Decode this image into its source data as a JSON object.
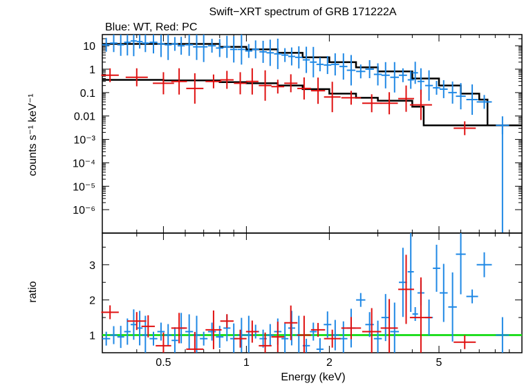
{
  "chart_data": [
    {
      "type": "scatter",
      "title": "Swift−XRT spectrum of GRB 171222A",
      "subtitle": "Blue: WT, Red: PC",
      "xlabel": "",
      "ylabel": "counts s⁻¹ keV⁻¹",
      "xscale": "log",
      "yscale": "log",
      "xlim": [
        0.3,
        10
      ],
      "ylim": [
        1e-07,
        30
      ],
      "yticks": [
        "10",
        "1",
        "0.1",
        "0.01",
        "10⁻³",
        "10⁻⁴",
        "10⁻⁵",
        "10⁻⁶"
      ],
      "series": [
        {
          "color": "#1f88e5",
          "style": "crosses",
          "points": [
            [
              0.31,
              11
            ],
            [
              0.33,
              13
            ],
            [
              0.35,
              11
            ],
            [
              0.37,
              14
            ],
            [
              0.39,
              16
            ],
            [
              0.41,
              15
            ],
            [
              0.43,
              13
            ],
            [
              0.46,
              14
            ],
            [
              0.49,
              12
            ],
            [
              0.52,
              11
            ],
            [
              0.55,
              12
            ],
            [
              0.58,
              10
            ],
            [
              0.62,
              11
            ],
            [
              0.66,
              9
            ],
            [
              0.7,
              9
            ],
            [
              0.75,
              10
            ],
            [
              0.8,
              8
            ],
            [
              0.85,
              9
            ],
            [
              0.9,
              7
            ],
            [
              0.96,
              7
            ],
            [
              1.02,
              6
            ],
            [
              1.08,
              7
            ],
            [
              1.15,
              5.5
            ],
            [
              1.22,
              5
            ],
            [
              1.3,
              4.5
            ],
            [
              1.38,
              4
            ],
            [
              1.46,
              3.5
            ],
            [
              1.55,
              3.2
            ],
            [
              1.65,
              2.5
            ],
            [
              1.75,
              2.0
            ],
            [
              1.85,
              1.6
            ],
            [
              1.97,
              1.5
            ],
            [
              2.1,
              1.6
            ],
            [
              2.25,
              1.3
            ],
            [
              2.4,
              0.9
            ],
            [
              2.6,
              0.8
            ],
            [
              2.8,
              1.0
            ],
            [
              3.0,
              0.6
            ],
            [
              3.2,
              0.55
            ],
            [
              3.45,
              0.45
            ],
            [
              3.7,
              0.55
            ],
            [
              3.95,
              0.35
            ],
            [
              4.1,
              0.7
            ],
            [
              4.3,
              0.3
            ],
            [
              4.6,
              0.2
            ],
            [
              4.9,
              0.16
            ],
            [
              5.2,
              0.14
            ],
            [
              5.6,
              0.1
            ],
            [
              6.0,
              0.07
            ],
            [
              6.6,
              0.05
            ],
            [
              7.3,
              0.04
            ],
            [
              8.5,
              0.004
            ]
          ]
        },
        {
          "color": "#e01010",
          "style": "crosses",
          "points": [
            [
              0.32,
              0.55
            ],
            [
              0.4,
              0.45
            ],
            [
              0.5,
              0.25
            ],
            [
              0.57,
              0.3
            ],
            [
              0.65,
              0.15
            ],
            [
              0.76,
              0.3
            ],
            [
              0.85,
              0.35
            ],
            [
              0.95,
              0.25
            ],
            [
              1.05,
              0.3
            ],
            [
              1.17,
              0.2
            ],
            [
              1.3,
              0.18
            ],
            [
              1.45,
              0.25
            ],
            [
              1.62,
              0.15
            ],
            [
              1.82,
              0.12
            ],
            [
              2.05,
              0.065
            ],
            [
              2.4,
              0.06
            ],
            [
              2.85,
              0.035
            ],
            [
              3.3,
              0.035
            ],
            [
              3.8,
              0.055
            ],
            [
              4.3,
              0.03
            ],
            [
              6.2,
              0.003
            ]
          ]
        },
        {
          "color": "#000000",
          "style": "model-blue",
          "points": [
            [
              0.3,
              12
            ],
            [
              0.5,
              12
            ],
            [
              0.8,
              9
            ],
            [
              1.0,
              7
            ],
            [
              1.3,
              5
            ],
            [
              1.6,
              3.2
            ],
            [
              2.0,
              2.0
            ],
            [
              2.5,
              1.2
            ],
            [
              3.0,
              0.8
            ],
            [
              4.0,
              0.4
            ],
            [
              5.0,
              0.2
            ],
            [
              6.0,
              0.09
            ],
            [
              7.0,
              0.05
            ],
            [
              7.5,
              0.004
            ],
            [
              10,
              0.004
            ]
          ]
        },
        {
          "color": "#000000",
          "style": "model-red",
          "points": [
            [
              0.3,
              0.35
            ],
            [
              0.5,
              0.33
            ],
            [
              0.8,
              0.28
            ],
            [
              1.0,
              0.25
            ],
            [
              1.3,
              0.2
            ],
            [
              1.6,
              0.14
            ],
            [
              2.0,
              0.09
            ],
            [
              2.5,
              0.06
            ],
            [
              3.0,
              0.045
            ],
            [
              4.0,
              0.025
            ],
            [
              4.4,
              0.022
            ],
            [
              4.4,
              0.004
            ],
            [
              10,
              0.004
            ]
          ]
        }
      ]
    },
    {
      "type": "scatter",
      "xlabel": "Energy (keV)",
      "ylabel": "ratio",
      "xscale": "log",
      "xlim": [
        0.3,
        10
      ],
      "ylim": [
        0.5,
        3.9
      ],
      "xticks": [
        [
          "0.5",
          0.5
        ],
        [
          "1",
          1
        ],
        [
          "2",
          2
        ],
        [
          "5",
          5
        ]
      ],
      "yticks": [
        "3",
        "2",
        "1"
      ],
      "reference_line": {
        "y": 1,
        "color": "#22dd22"
      },
      "series": [
        {
          "color": "#1f88e5",
          "style": "crosses",
          "points": [
            [
              0.31,
              0.9
            ],
            [
              0.33,
              1.0
            ],
            [
              0.35,
              0.95
            ],
            [
              0.37,
              1.1
            ],
            [
              0.39,
              1.3
            ],
            [
              0.41,
              1.2
            ],
            [
              0.43,
              1.0
            ],
            [
              0.46,
              0.9
            ],
            [
              0.49,
              1.1
            ],
            [
              0.52,
              1.0
            ],
            [
              0.55,
              0.85
            ],
            [
              0.58,
              1.2
            ],
            [
              0.62,
              1.1
            ],
            [
              0.66,
              1.0
            ],
            [
              0.7,
              0.9
            ],
            [
              0.75,
              1.1
            ],
            [
              0.8,
              0.95
            ],
            [
              0.85,
              1.2
            ],
            [
              0.9,
              0.9
            ],
            [
              0.96,
              1.0
            ],
            [
              1.02,
              1.0
            ],
            [
              1.08,
              1.1
            ],
            [
              1.15,
              0.9
            ],
            [
              1.22,
              1.0
            ],
            [
              1.3,
              1.1
            ],
            [
              1.38,
              0.9
            ],
            [
              1.46,
              1.2
            ],
            [
              1.55,
              1.0
            ],
            [
              1.65,
              0.7
            ],
            [
              1.75,
              1.1
            ],
            [
              1.85,
              0.6
            ],
            [
              1.97,
              1.3
            ],
            [
              2.1,
              1.0
            ],
            [
              2.25,
              0.9
            ],
            [
              2.4,
              1.2
            ],
            [
              2.6,
              2.0
            ],
            [
              2.8,
              1.3
            ],
            [
              3.0,
              0.9
            ],
            [
              3.2,
              1.5
            ],
            [
              3.45,
              1.1
            ],
            [
              3.7,
              2.5
            ],
            [
              3.95,
              2.8
            ],
            [
              4.1,
              1.6
            ],
            [
              4.3,
              2.2
            ],
            [
              4.6,
              1.5
            ],
            [
              4.9,
              2.9
            ],
            [
              5.2,
              2.2
            ],
            [
              5.6,
              1.8
            ],
            [
              6.0,
              3.3
            ],
            [
              6.6,
              2.1
            ],
            [
              7.3,
              3.0
            ],
            [
              8.5,
              1.0
            ]
          ]
        },
        {
          "color": "#e01010",
          "style": "crosses",
          "points": [
            [
              0.32,
              1.65
            ],
            [
              0.4,
              1.4
            ],
            [
              0.44,
              1.25
            ],
            [
              0.5,
              0.7
            ],
            [
              0.57,
              1.2
            ],
            [
              0.65,
              0.6
            ],
            [
              0.76,
              1.15
            ],
            [
              0.85,
              1.4
            ],
            [
              0.95,
              0.9
            ],
            [
              1.05,
              1.1
            ],
            [
              1.17,
              0.7
            ],
            [
              1.3,
              0.95
            ],
            [
              1.45,
              1.35
            ],
            [
              1.62,
              1.0
            ],
            [
              1.82,
              1.15
            ],
            [
              2.05,
              0.9
            ],
            [
              2.4,
              1.2
            ],
            [
              2.85,
              1.1
            ],
            [
              3.3,
              1.2
            ],
            [
              3.8,
              2.3
            ],
            [
              4.3,
              1.5
            ],
            [
              6.2,
              0.8
            ]
          ]
        }
      ]
    }
  ]
}
